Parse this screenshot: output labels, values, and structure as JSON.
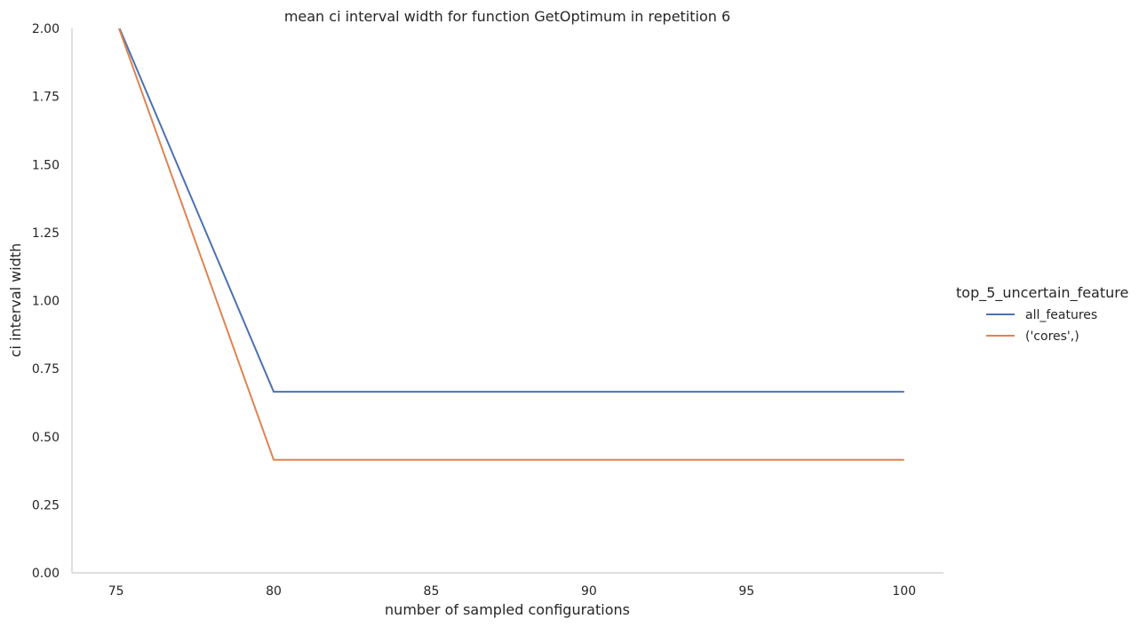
{
  "chart_data": {
    "type": "line",
    "title": "mean ci interval width for function GetOptimum in repetition 6",
    "xlabel": "number of sampled configurations",
    "ylabel": "ci interval width",
    "xlim": [
      73.6,
      101.25
    ],
    "ylim": [
      0,
      2
    ],
    "xticks": [
      75,
      80,
      85,
      90,
      95,
      100
    ],
    "yticks": [
      0,
      0.25,
      0.5,
      0.75,
      1.0,
      1.25,
      1.5,
      1.75,
      2.0
    ],
    "ytick_labels": [
      "0.00",
      "0.25",
      "0.50",
      "0.75",
      "1.00",
      "1.25",
      "1.50",
      "1.75",
      "2.00"
    ],
    "grid": false,
    "legend": {
      "title": "top_5_uncertain_feature",
      "placement": "right"
    },
    "series": [
      {
        "name": "all_features",
        "color": "#4c72b0",
        "x": [
          75,
          80,
          100
        ],
        "y": [
          2.03,
          0.665,
          0.665
        ]
      },
      {
        "name": "('cores',)",
        "color": "#dd8452",
        "x": [
          75,
          80,
          100
        ],
        "y": [
          2.03,
          0.415,
          0.415
        ]
      }
    ]
  }
}
